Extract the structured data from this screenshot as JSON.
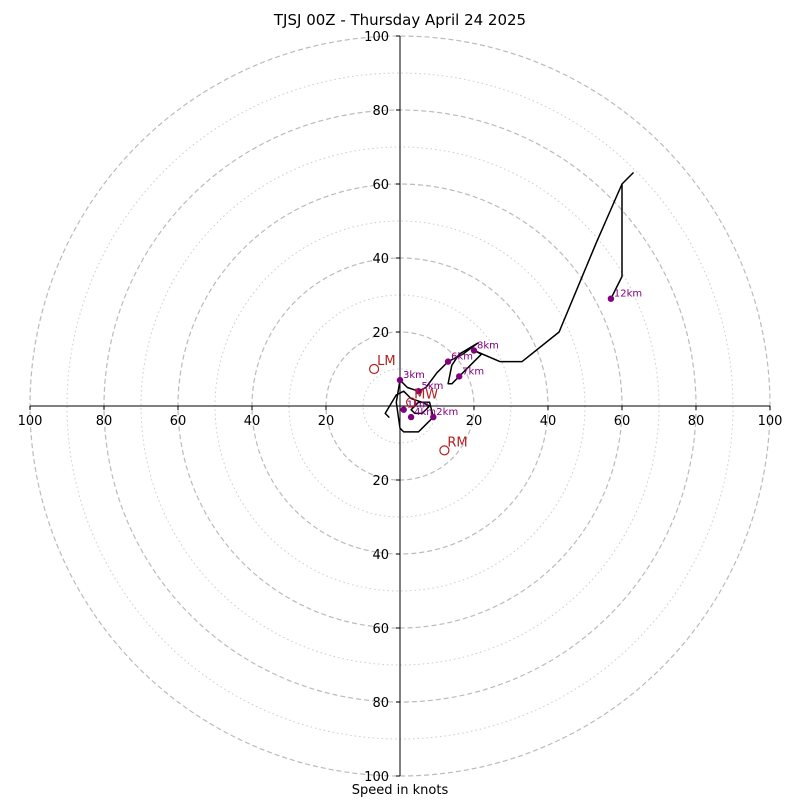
{
  "chart_data": {
    "type": "scatter",
    "title": "TJSJ 00Z - Thursday April 24 2025",
    "xlabel": "Speed in knots",
    "ylabel": "",
    "xlim": [
      -100,
      100
    ],
    "ylim": [
      -100,
      100
    ],
    "rings_major": [
      20,
      40,
      60,
      80,
      100
    ],
    "rings_minor": [
      10,
      30,
      50,
      70,
      90
    ],
    "ticks": [
      {
        "v": -100,
        "label": "100"
      },
      {
        "v": -80,
        "label": "80"
      },
      {
        "v": -60,
        "label": "60"
      },
      {
        "v": -40,
        "label": "40"
      },
      {
        "v": -20,
        "label": "20"
      },
      {
        "v": 20,
        "label": "20"
      },
      {
        "v": 40,
        "label": "40"
      },
      {
        "v": 60,
        "label": "60"
      },
      {
        "v": 80,
        "label": "80"
      },
      {
        "v": 100,
        "label": "100"
      }
    ],
    "hodograph": [
      [
        -4,
        -2
      ],
      [
        -3,
        -3
      ],
      [
        -4,
        -2
      ],
      [
        -1,
        3
      ],
      [
        1,
        4
      ],
      [
        3,
        2
      ],
      [
        6,
        1
      ],
      [
        8,
        0
      ],
      [
        6,
        -2
      ],
      [
        4,
        -2
      ],
      [
        3,
        -1
      ],
      [
        5,
        1
      ],
      [
        8,
        1
      ],
      [
        9,
        -3
      ],
      [
        6,
        -6
      ],
      [
        5,
        -7
      ],
      [
        1,
        -7
      ],
      [
        0,
        -6
      ],
      [
        -1,
        1
      ],
      [
        0,
        7
      ],
      [
        2,
        5
      ],
      [
        5,
        4
      ],
      [
        7,
        5
      ],
      [
        10,
        9
      ],
      [
        13,
        12
      ],
      [
        17,
        14
      ],
      [
        21,
        17
      ],
      [
        16,
        14
      ],
      [
        14,
        11
      ],
      [
        13,
        6
      ],
      [
        14,
        6
      ],
      [
        16,
        8
      ],
      [
        19,
        11
      ],
      [
        22,
        14
      ],
      [
        20,
        15
      ],
      [
        27,
        12
      ],
      [
        33,
        12
      ],
      [
        43,
        20
      ],
      [
        53,
        44
      ],
      [
        60,
        60
      ],
      [
        63,
        63
      ],
      [
        60,
        60
      ],
      [
        60,
        35
      ],
      [
        57,
        29
      ]
    ],
    "height_markers": [
      {
        "label": "1km",
        "x": 1,
        "y": -1
      },
      {
        "label": "2km",
        "x": 9,
        "y": -3
      },
      {
        "label": "3km",
        "x": 0,
        "y": 7
      },
      {
        "label": "4km",
        "x": 3,
        "y": -3
      },
      {
        "label": "5km",
        "x": 5,
        "y": 4
      },
      {
        "label": "6km",
        "x": 13,
        "y": 12
      },
      {
        "label": "7km",
        "x": 16,
        "y": 8
      },
      {
        "label": "8km",
        "x": 20,
        "y": 15
      },
      {
        "label": "12km",
        "x": 57,
        "y": 29
      }
    ],
    "storm_motion": [
      {
        "label": "LM",
        "x": -7,
        "y": 10
      },
      {
        "label": "RM",
        "x": 12,
        "y": -12
      },
      {
        "label": "MW",
        "x": 3,
        "y": 1
      }
    ],
    "colors": {
      "line": "#000000",
      "markers": "#800080",
      "storm_motion": "#b22222",
      "grid": "#bbbbbb"
    }
  }
}
